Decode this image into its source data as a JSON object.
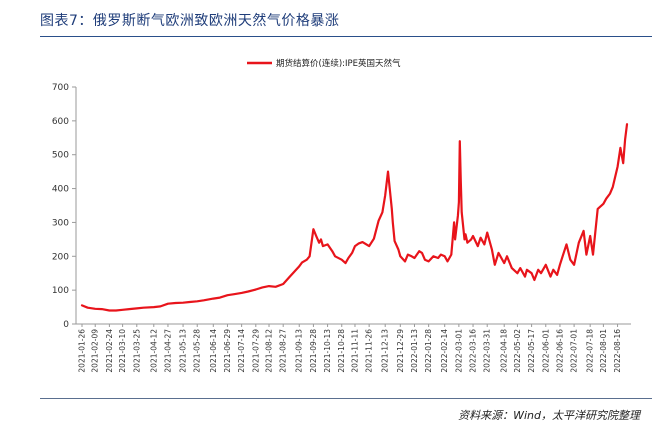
{
  "figure": {
    "title": "图表7：俄罗斯断气欧洲致欧洲天然气价格暴涨",
    "source": "资料来源：Wind，太平洋研究院整理"
  },
  "chart_data": {
    "type": "line",
    "xlabel": "",
    "ylabel": "",
    "ylim": [
      0,
      700
    ],
    "yticks": [
      0,
      100,
      200,
      300,
      400,
      500,
      600,
      700
    ],
    "grid": false,
    "legend_position": "top-center",
    "xtick_labels": [
      "2021-01-26",
      "2021-02-09",
      "2021-02-24",
      "2021-03-10",
      "2021-03-25",
      "2021-04-12",
      "2021-04-27",
      "2021-05-13",
      "2021-05-28",
      "2021-06-14",
      "2021-06-29",
      "2021-07-14",
      "2021-07-29",
      "2021-08-12",
      "2021-08-27",
      "2021-09-13",
      "2021-09-28",
      "2021-10-13",
      "2021-10-28",
      "2021-11-11",
      "2021-11-26",
      "2021-12-13",
      "2021-12-29",
      "2022-01-13",
      "2022-01-28",
      "2022-02-14",
      "2022-03-01",
      "2022-03-16",
      "2022-03-31",
      "2022-04-18",
      "2022-05-02",
      "2022-05-17",
      "2022-06-01",
      "2022-06-16",
      "2022-07-01",
      "2022-07-18",
      "2022-08-01",
      "2022-08-16"
    ],
    "series": [
      {
        "name": "期货结算价(连续):IPE英国天然气",
        "color": "#e8141b",
        "x": [
          "2021-01-26",
          "2021-02-01",
          "2021-02-09",
          "2021-02-16",
          "2021-02-24",
          "2021-03-03",
          "2021-03-10",
          "2021-03-17",
          "2021-03-25",
          "2021-04-01",
          "2021-04-12",
          "2021-04-19",
          "2021-04-27",
          "2021-05-05",
          "2021-05-13",
          "2021-05-20",
          "2021-05-28",
          "2021-06-04",
          "2021-06-14",
          "2021-06-21",
          "2021-06-29",
          "2021-07-06",
          "2021-07-14",
          "2021-07-21",
          "2021-07-29",
          "2021-08-05",
          "2021-08-12",
          "2021-08-19",
          "2021-08-27",
          "2021-09-03",
          "2021-09-08",
          "2021-09-13",
          "2021-09-16",
          "2021-09-21",
          "2021-09-24",
          "2021-09-28",
          "2021-10-01",
          "2021-10-04",
          "2021-10-06",
          "2021-10-08",
          "2021-10-13",
          "2021-10-18",
          "2021-10-21",
          "2021-10-28",
          "2021-11-01",
          "2021-11-04",
          "2021-11-08",
          "2021-11-11",
          "2021-11-15",
          "2021-11-19",
          "2021-11-26",
          "2021-12-01",
          "2021-12-06",
          "2021-12-10",
          "2021-12-13",
          "2021-12-16",
          "2021-12-20",
          "2021-12-21",
          "2021-12-23",
          "2021-12-27",
          "2021-12-29",
          "2022-01-03",
          "2022-01-06",
          "2022-01-10",
          "2022-01-13",
          "2022-01-18",
          "2022-01-21",
          "2022-01-24",
          "2022-01-28",
          "2022-02-02",
          "2022-02-07",
          "2022-02-10",
          "2022-02-14",
          "2022-02-17",
          "2022-02-21",
          "2022-02-24",
          "2022-02-25",
          "2022-02-28",
          "2022-03-01",
          "2022-03-02",
          "2022-03-03",
          "2022-03-04",
          "2022-03-07",
          "2022-03-08",
          "2022-03-10",
          "2022-03-14",
          "2022-03-16",
          "2022-03-21",
          "2022-03-24",
          "2022-03-28",
          "2022-03-31",
          "2022-04-05",
          "2022-04-08",
          "2022-04-12",
          "2022-04-18",
          "2022-04-21",
          "2022-04-26",
          "2022-05-02",
          "2022-05-05",
          "2022-05-10",
          "2022-05-12",
          "2022-05-17",
          "2022-05-20",
          "2022-05-24",
          "2022-05-27",
          "2022-06-01",
          "2022-06-06",
          "2022-06-09",
          "2022-06-13",
          "2022-06-16",
          "2022-06-20",
          "2022-06-23",
          "2022-06-27",
          "2022-07-01",
          "2022-07-06",
          "2022-07-11",
          "2022-07-14",
          "2022-07-18",
          "2022-07-21",
          "2022-07-26",
          "2022-08-01",
          "2022-08-04",
          "2022-08-08",
          "2022-08-11",
          "2022-08-16",
          "2022-08-19",
          "2022-08-22",
          "2022-08-24",
          "2022-08-26"
        ],
        "values": [
          55,
          48,
          45,
          44,
          40,
          40,
          42,
          44,
          46,
          48,
          50,
          52,
          60,
          62,
          63,
          65,
          67,
          70,
          75,
          78,
          85,
          88,
          92,
          96,
          102,
          108,
          112,
          110,
          118,
          140,
          155,
          170,
          182,
          190,
          200,
          280,
          260,
          240,
          250,
          230,
          235,
          215,
          200,
          190,
          180,
          195,
          210,
          230,
          238,
          242,
          230,
          252,
          305,
          330,
          380,
          450,
          340,
          300,
          245,
          220,
          200,
          185,
          205,
          200,
          195,
          215,
          210,
          190,
          185,
          200,
          195,
          205,
          200,
          185,
          205,
          300,
          250,
          320,
          360,
          540,
          420,
          330,
          250,
          265,
          240,
          250,
          260,
          230,
          255,
          235,
          270,
          220,
          175,
          210,
          180,
          200,
          165,
          150,
          165,
          140,
          160,
          150,
          130,
          160,
          150,
          175,
          140,
          160,
          145,
          175,
          210,
          235,
          190,
          175,
          240,
          275,
          205,
          260,
          205,
          340,
          355,
          370,
          385,
          405,
          465,
          520,
          475,
          545,
          590
        ]
      }
    ]
  }
}
